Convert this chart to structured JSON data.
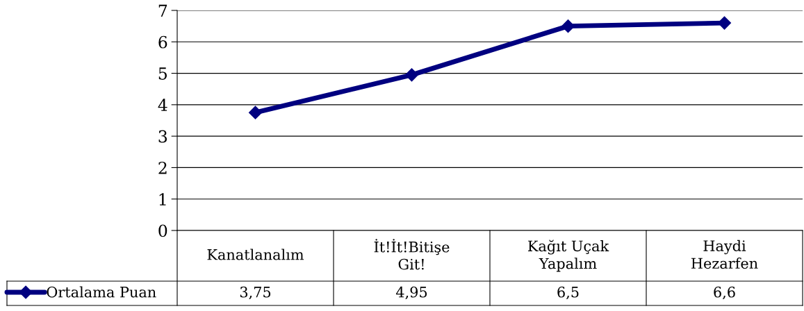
{
  "chart_data": {
    "type": "line",
    "categories": [
      "Kanatlanalım",
      "İt!İt!Bitişe\nGit!",
      "Kağıt Uçak\nYapalım",
      "Haydi\nHezarfen"
    ],
    "series": [
      {
        "name": "Ortalama Puan",
        "color": "#000080",
        "values": [
          3.75,
          4.95,
          6.5,
          6.6
        ],
        "value_labels": [
          "3,75",
          "4,95",
          "6,5",
          "6,6"
        ]
      }
    ],
    "ylim": [
      0,
      7
    ],
    "yticks": [
      0,
      1,
      2,
      3,
      4,
      5,
      6,
      7
    ],
    "grid": "y",
    "legend": "bottom left",
    "marker": "diamond",
    "line_style": "solid"
  }
}
